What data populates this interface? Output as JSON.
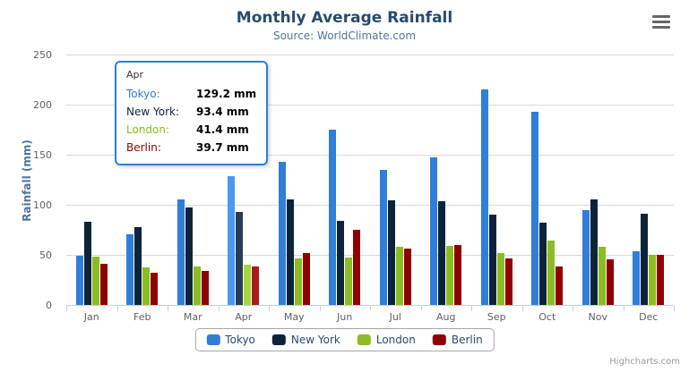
{
  "chart_data": {
    "type": "bar",
    "title": "Monthly Average Rainfall",
    "subtitle": "Source: WorldClimate.com",
    "xlabel": "",
    "ylabel": "Rainfall (mm)",
    "ylim": [
      0,
      250
    ],
    "yticks": [
      0,
      50,
      100,
      150,
      200,
      250
    ],
    "grid": true,
    "legend_position": "bottom",
    "categories": [
      "Jan",
      "Feb",
      "Mar",
      "Apr",
      "May",
      "Jun",
      "Jul",
      "Aug",
      "Sep",
      "Oct",
      "Nov",
      "Dec"
    ],
    "series": [
      {
        "name": "Tokyo",
        "color": "#2f7ed8",
        "values": [
          49.9,
          71.5,
          106.4,
          129.2,
          144.0,
          176.0,
          135.6,
          148.5,
          216.4,
          194.1,
          95.6,
          54.4
        ]
      },
      {
        "name": "New York",
        "color": "#0d233a",
        "values": [
          83.6,
          78.8,
          98.5,
          93.4,
          106.0,
          84.5,
          105.0,
          104.3,
          91.2,
          83.5,
          106.6,
          92.3
        ]
      },
      {
        "name": "London",
        "color": "#8bbc21",
        "values": [
          48.9,
          38.8,
          39.3,
          41.4,
          47.0,
          48.3,
          59.0,
          59.6,
          52.4,
          65.2,
          59.3,
          51.2
        ]
      },
      {
        "name": "Berlin",
        "color": "#910000",
        "values": [
          42.4,
          33.2,
          34.5,
          39.7,
          52.6,
          75.5,
          57.4,
          60.4,
          47.6,
          39.1,
          46.8,
          51.1
        ]
      }
    ]
  },
  "tooltip": {
    "header": "Apr",
    "category_index": 3,
    "border_color": "#2f7ed8",
    "hover_brighten": 0.1,
    "rows": [
      {
        "name": "Tokyo:",
        "value": "129.2 mm",
        "color": "#2f7ed8"
      },
      {
        "name": "New York:",
        "value": "93.4 mm",
        "color": "#0d233a"
      },
      {
        "name": "London:",
        "value": "41.4 mm",
        "color": "#8bbc21"
      },
      {
        "name": "Berlin:",
        "value": "39.7 mm",
        "color": "#910000"
      }
    ]
  },
  "legend": {
    "items": [
      "Tokyo",
      "New York",
      "London",
      "Berlin"
    ]
  },
  "credits": {
    "label": "Highcharts.com"
  },
  "icons": {
    "context_menu": "hamburger-menu-icon"
  },
  "colors": {
    "title": "#274b6d",
    "subtitle": "#4d759e",
    "axis_label": "#606060",
    "grid": "#d8d8d8",
    "axis_line": "#c0d0e0",
    "legend_border": "#a7a7a7"
  }
}
